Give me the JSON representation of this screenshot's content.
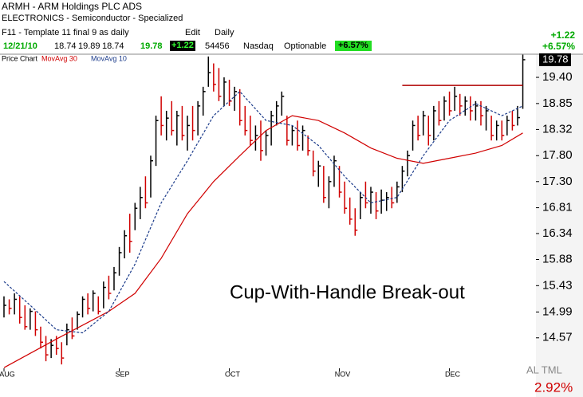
{
  "header": {
    "symbol": "ARMH - ARM Holdings PLC ADS",
    "industry": "ELECTRONICS - Semiconductor - Specialized",
    "template": "F11 - Template 11 final 9 as daily",
    "period": "Daily",
    "edit": "Edit",
    "exchange": "Nasdaq",
    "optionable": "Optionable",
    "date": "12/21/10",
    "open": 18.74,
    "high": 19.89,
    "low": 18.74,
    "close": 19.78,
    "change": "+1.22",
    "volume": 54456,
    "percent_change": "+6.57%",
    "right_change": "+1.22",
    "right_percent": "+6.57%",
    "list_name": "AL TML",
    "list_percent": "2.92%"
  },
  "chart_data": {
    "type": "ohlc",
    "price_label": "Price Chart",
    "annotation": "Cup-With-Handle Break-out",
    "log_scale": true,
    "xlim": [
      -0.76,
      101.2
    ],
    "ylim": [
      14.09,
      19.9
    ],
    "xticks": [
      {
        "value": 0,
        "label": "AUG"
      },
      {
        "value": 22,
        "label": "SEP"
      },
      {
        "value": 43,
        "label": "OCT"
      },
      {
        "value": 64,
        "label": "NOV"
      },
      {
        "value": 85,
        "label": "DEC"
      }
    ],
    "yticks": [
      {
        "value": 19.4,
        "label": "19.40"
      },
      18.85,
      18.32,
      {
        "value": 17.8,
        "label": "17.80"
      },
      {
        "value": 17.3,
        "label": "17.30"
      },
      16.81,
      16.34,
      15.88,
      15.43,
      14.99,
      14.57
    ],
    "last_price": 19.78,
    "up_color": "#000000",
    "down_color": "#d00000",
    "high": [
      15.25,
      15.2,
      15.3,
      15.25,
      15.1,
      15.05,
      15,
      14.75,
      14.6,
      14.55,
      14.6,
      14.5,
      14.8,
      14.9,
      15,
      15.25,
      15.3,
      15.35,
      15.25,
      15.5,
      15.6,
      15.75,
      16.1,
      16.4,
      16.7,
      16.9,
      17.2,
      17.4,
      17.8,
      18.6,
      19,
      18.7,
      18.9,
      18.7,
      18.8,
      18.6,
      18.8,
      18.9,
      19.2,
      19.85,
      19.7,
      19.6,
      19.4,
      19.35,
      19.2,
      19.15,
      18.8,
      18.6,
      18.4,
      18.5,
      18.3,
      18.7,
      18.9,
      19.1,
      18.6,
      18.4,
      18.5,
      18.4,
      18.2,
      17.9,
      17.7,
      17.6,
      17.4,
      17.8,
      17.6,
      17.3,
      17,
      16.8,
      17.1,
      17.3,
      17.2,
      17.1,
      17.15,
      17.1,
      17.2,
      17.3,
      17.6,
      17.9,
      18.5,
      18.6,
      18.7,
      18.6,
      18.8,
      18.9,
      19,
      19.1,
      19.2,
      19.05,
      19,
      19,
      18.9,
      18.9,
      18.8,
      18.6,
      18.5,
      18.5,
      18.6,
      18.7,
      18.8,
      19.89
    ],
    "low": [
      14.9,
      14.95,
      14.95,
      14.8,
      14.7,
      14.7,
      14.6,
      14.4,
      14.2,
      14.25,
      14.3,
      14.15,
      14.45,
      14.55,
      14.7,
      14.9,
      14.95,
      15,
      14.95,
      15.05,
      15.2,
      15.35,
      15.6,
      15.9,
      16,
      16.4,
      16.6,
      16.8,
      17,
      17.6,
      18.2,
      18.1,
      18.2,
      18,
      18.1,
      17.9,
      18.1,
      18.2,
      18.6,
      19.2,
      19.1,
      18.9,
      18.8,
      18.8,
      18.7,
      18.4,
      18.2,
      18,
      17.9,
      17.7,
      17.8,
      18,
      18.4,
      18.6,
      18,
      18,
      17.9,
      17.9,
      17.8,
      17.4,
      17.2,
      16.9,
      16.8,
      17.2,
      17,
      16.7,
      16.5,
      16.3,
      16.6,
      16.8,
      16.7,
      16.6,
      16.7,
      16.75,
      16.8,
      16.9,
      17.1,
      17.4,
      17.9,
      18.1,
      18.2,
      18,
      18.1,
      18.4,
      18.5,
      18.6,
      18.7,
      18.6,
      18.6,
      18.5,
      18.5,
      18.4,
      18.3,
      18.1,
      18.1,
      18.1,
      18.2,
      18.3,
      18.4,
      18.74
    ],
    "close": [
      15.1,
      15.05,
      15.2,
      14.9,
      14.75,
      15,
      14.7,
      14.5,
      14.3,
      14.45,
      14.4,
      14.25,
      14.7,
      14.6,
      14.95,
      15.2,
      15.05,
      15.3,
      15,
      15.4,
      15.3,
      15.65,
      16,
      16.3,
      16.2,
      16.8,
      17,
      16.9,
      17.7,
      18.5,
      18.4,
      18.55,
      18.3,
      18.6,
      18.2,
      18.4,
      18.3,
      18.8,
      19.1,
      19.5,
      19.25,
      19,
      19.3,
      18.9,
      19.1,
      18.5,
      18.3,
      18.1,
      18.2,
      17.9,
      18.2,
      18.6,
      18.8,
      19,
      18.1,
      18.3,
      18,
      18.3,
      17.9,
      17.5,
      17.6,
      17,
      17.3,
      17.7,
      17.1,
      16.8,
      16.6,
      16.4,
      17,
      16.9,
      17.1,
      16.75,
      16.95,
      17,
      16.9,
      17.2,
      17.5,
      17.8,
      18.4,
      18.2,
      18.6,
      18.2,
      18.7,
      18.5,
      18.9,
      18.7,
      19,
      18.8,
      18.9,
      18.7,
      18.8,
      18.6,
      18.7,
      18.2,
      18.4,
      18.2,
      18.5,
      18.4,
      18.56,
      19.78
    ],
    "series": [
      {
        "name": "MovAvg 30",
        "color": "#d00000",
        "dash": false,
        "x": [
          0,
          10,
          20,
          25,
          30,
          35,
          40,
          45,
          50,
          55,
          60,
          65,
          70,
          75,
          80,
          85,
          90,
          95,
          99
        ],
        "values": [
          14.1,
          14.55,
          15,
          15.3,
          15.9,
          16.7,
          17.3,
          17.8,
          18.3,
          18.6,
          18.5,
          18.25,
          17.95,
          17.75,
          17.65,
          17.75,
          17.85,
          18,
          18.25
        ]
      },
      {
        "name": "MovAvg 10",
        "color": "#1a3a8a",
        "dash": true,
        "x": [
          0,
          5,
          10,
          15,
          20,
          25,
          30,
          35,
          40,
          45,
          50,
          55,
          60,
          65,
          70,
          75,
          80,
          85,
          90,
          95,
          99
        ],
        "values": [
          15.5,
          15.1,
          14.7,
          14.65,
          15,
          15.8,
          16.9,
          17.7,
          18.6,
          19.1,
          18.5,
          18.4,
          18,
          17.4,
          16.9,
          17,
          17.8,
          18.5,
          18.85,
          18.6,
          18.8
        ]
      }
    ],
    "resistance": {
      "x": [
        76,
        99
      ],
      "value": 19.23,
      "color": "#b00000"
    }
  }
}
